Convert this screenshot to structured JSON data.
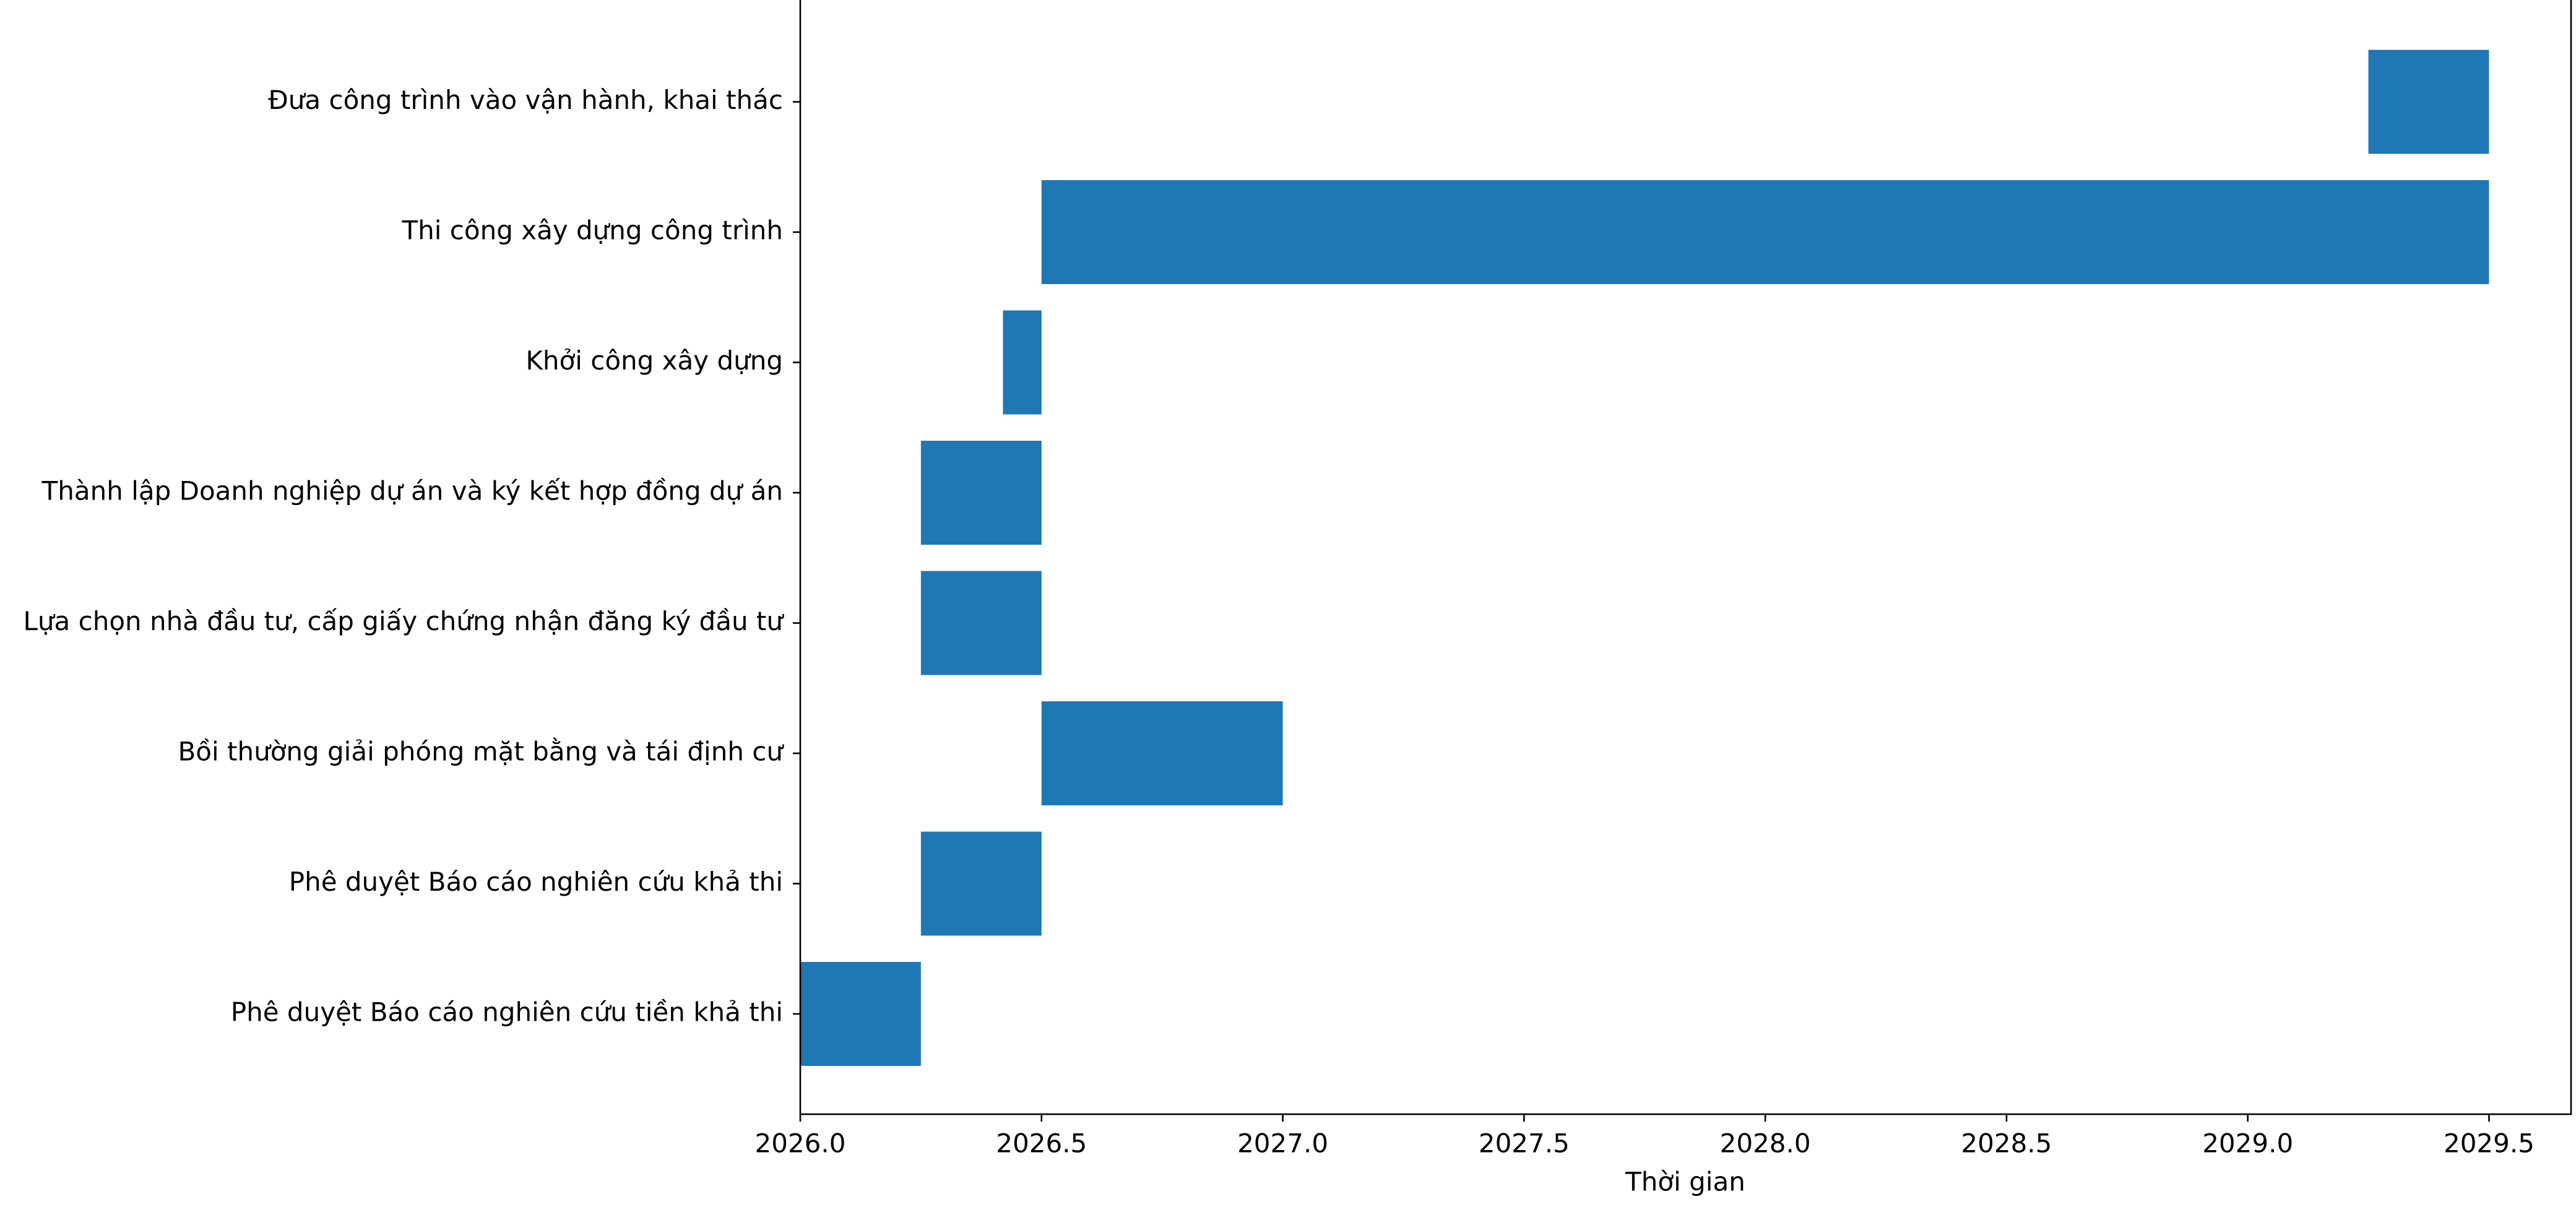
{
  "chart_data": {
    "type": "gantt",
    "x_label": "Thời gian",
    "categories": [
      "Phê duyệt Báo cáo nghiên cứu tiền khả thi",
      "Phê duyệt Báo cáo nghiên cứu khả thi",
      "Bồi thường giải phóng mặt bằng và tái định cư",
      "Lựa chọn nhà đầu tư, cấp giấy chứng nhận đăng ký đầu tư",
      "Thành lập Doanh nghiệp dự án và ký kết hợp đồng dự án",
      "Khởi công xây dựng",
      "Thi công xây dựng công trình",
      "Đưa công trình vào vận hành, khai thác"
    ],
    "start": [
      2026.0,
      2026.25,
      2026.5,
      2026.25,
      2026.25,
      2026.42,
      2026.5,
      2029.25
    ],
    "end": [
      2026.25,
      2026.5,
      2027.0,
      2026.5,
      2026.5,
      2026.5,
      2029.5,
      2029.5
    ],
    "color": "#1f77b4",
    "xlim": [
      2026.0,
      2029.67
    ],
    "xticks": [
      {
        "value": 2026.0,
        "label": "2026.0"
      },
      {
        "value": 2026.5,
        "label": "2026.5"
      },
      {
        "value": 2027.0,
        "label": "2027.0"
      },
      {
        "value": 2027.5,
        "label": "2027.5"
      },
      {
        "value": 2028.0,
        "label": "2028.0"
      },
      {
        "value": 2028.5,
        "label": "2028.5"
      },
      {
        "value": 2029.0,
        "label": "2029.0"
      },
      {
        "value": 2029.5,
        "label": "2029.5"
      }
    ]
  }
}
